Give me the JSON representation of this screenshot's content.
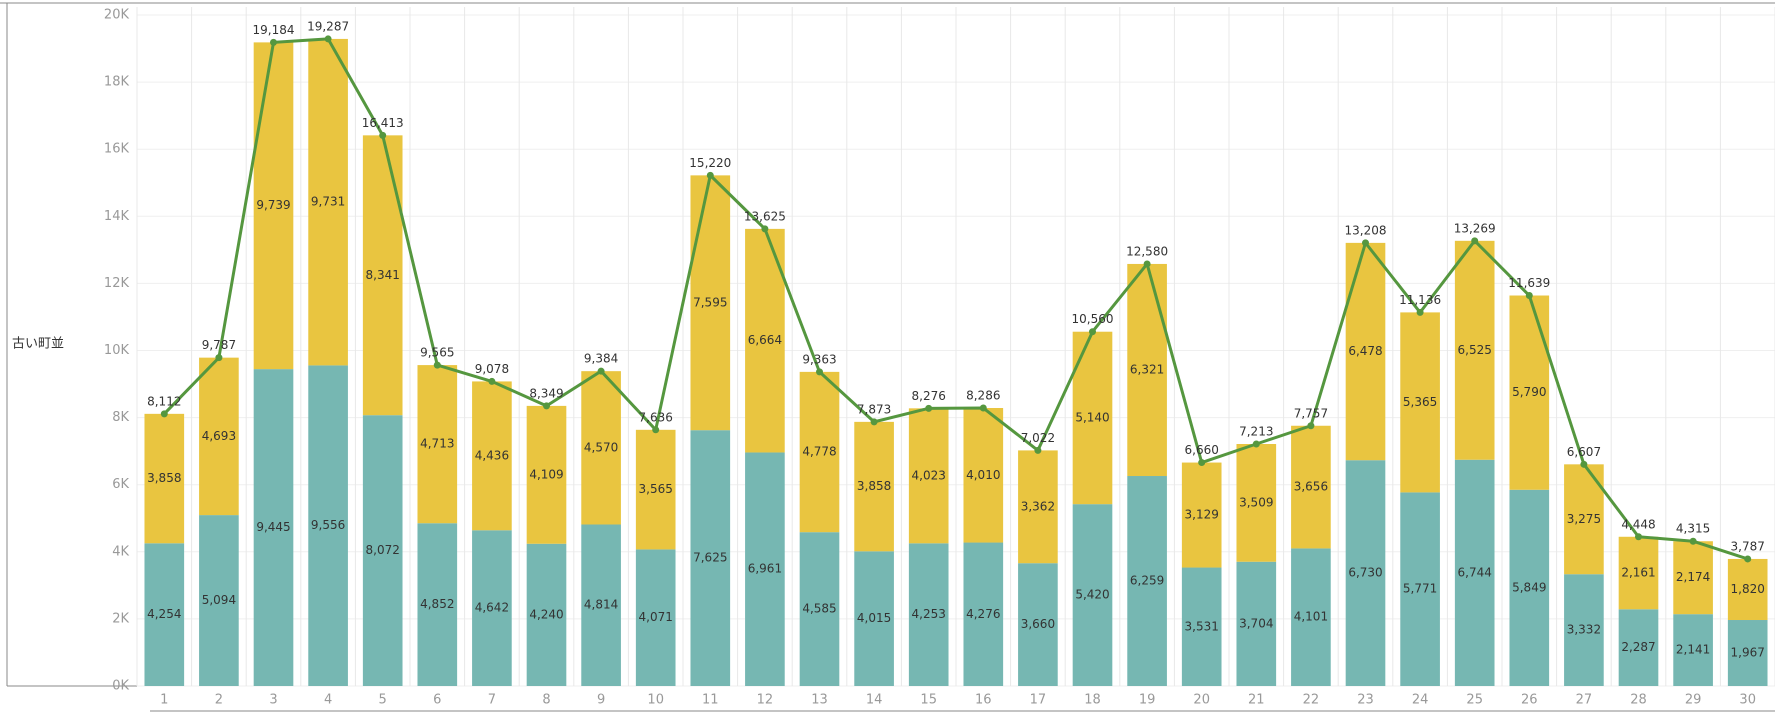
{
  "chart_data": {
    "type": "stacked_bar_line",
    "y_label": "古い町並",
    "categories": [
      "1",
      "2",
      "3",
      "4",
      "5",
      "6",
      "7",
      "8",
      "9",
      "10",
      "11",
      "12",
      "13",
      "14",
      "15",
      "16",
      "17",
      "18",
      "19",
      "20",
      "21",
      "22",
      "23",
      "24",
      "25",
      "26",
      "27",
      "28",
      "29",
      "30"
    ],
    "series": [
      {
        "type": "bar",
        "color": "#76b7b2",
        "values": [
          4254,
          5094,
          9445,
          9556,
          8072,
          4852,
          4642,
          4240,
          4814,
          4071,
          7625,
          6961,
          4585,
          4015,
          4253,
          4276,
          3660,
          5420,
          6259,
          3531,
          3704,
          4101,
          6730,
          5771,
          6744,
          5849,
          3332,
          2287,
          2141,
          1967
        ],
        "value_labels": [
          "4,254",
          "5,094",
          "9,445",
          "9,556",
          "8,072",
          "4,852",
          "4,642",
          "4,240",
          "4,814",
          "4,071",
          "7,625",
          "6,961",
          "4,585",
          "4,015",
          "4,253",
          "4,276",
          "3,660",
          "5,420",
          "6,259",
          "3,531",
          "3,704",
          "4,101",
          "6,730",
          "5,771",
          "6,744",
          "5,849",
          "3,332",
          "2,287",
          "2,141",
          "1,967"
        ]
      },
      {
        "type": "bar",
        "color": "#e9c540",
        "values": [
          3858,
          4693,
          9739,
          9731,
          8341,
          4713,
          4436,
          4109,
          4570,
          3565,
          7595,
          6664,
          4778,
          3858,
          4023,
          4010,
          3362,
          5140,
          6321,
          3129,
          3509,
          3656,
          6478,
          5365,
          6525,
          5790,
          3275,
          2161,
          2174,
          1820
        ],
        "value_labels": [
          "3,858",
          "4,693",
          "9,739",
          "9,731",
          "8,341",
          "4,713",
          "4,436",
          "4,109",
          "4,570",
          "3,565",
          "7,595",
          "6,664",
          "4,778",
          "3,858",
          "4,023",
          "4,010",
          "3,362",
          "5,140",
          "6,321",
          "3,129",
          "3,509",
          "3,656",
          "6,478",
          "5,365",
          "6,525",
          "5,790",
          "3,275",
          "2,161",
          "2,174",
          "1,820"
        ]
      },
      {
        "type": "line",
        "color": "#55973f",
        "values": [
          8112,
          9787,
          19184,
          19287,
          16413,
          9565,
          9078,
          8349,
          9384,
          7636,
          15220,
          13625,
          9363,
          7873,
          8276,
          8286,
          7022,
          10560,
          12580,
          6660,
          7213,
          7757,
          13208,
          11136,
          13269,
          11639,
          6607,
          4448,
          4315,
          3787
        ],
        "value_labels": [
          "8,112",
          "9,787",
          "19,184",
          "19,287",
          "16,413",
          "9,565",
          "9,078",
          "8,349",
          "9,384",
          "7,636",
          "15,220",
          "13,625",
          "9,363",
          "7,873",
          "8,276",
          "8,286",
          "7,022",
          "10,560",
          "12,580",
          "6,660",
          "7,213",
          "7,757",
          "13,208",
          "11,136",
          "13,269",
          "11,639",
          "6,607",
          "4,448",
          "4,315",
          "3,787"
        ]
      }
    ],
    "ylim": [
      0,
      20000
    ],
    "yticks": [
      {
        "value": 0,
        "label": "0K"
      },
      {
        "value": 2000,
        "label": "2K"
      },
      {
        "value": 4000,
        "label": "4K"
      },
      {
        "value": 6000,
        "label": "6K"
      },
      {
        "value": 8000,
        "label": "8K"
      },
      {
        "value": 10000,
        "label": "10K"
      },
      {
        "value": 12000,
        "label": "12K"
      },
      {
        "value": 14000,
        "label": "14K"
      },
      {
        "value": 16000,
        "label": "16K"
      },
      {
        "value": 18000,
        "label": "18K"
      },
      {
        "value": 20000,
        "label": "20K"
      }
    ],
    "grid": true
  }
}
